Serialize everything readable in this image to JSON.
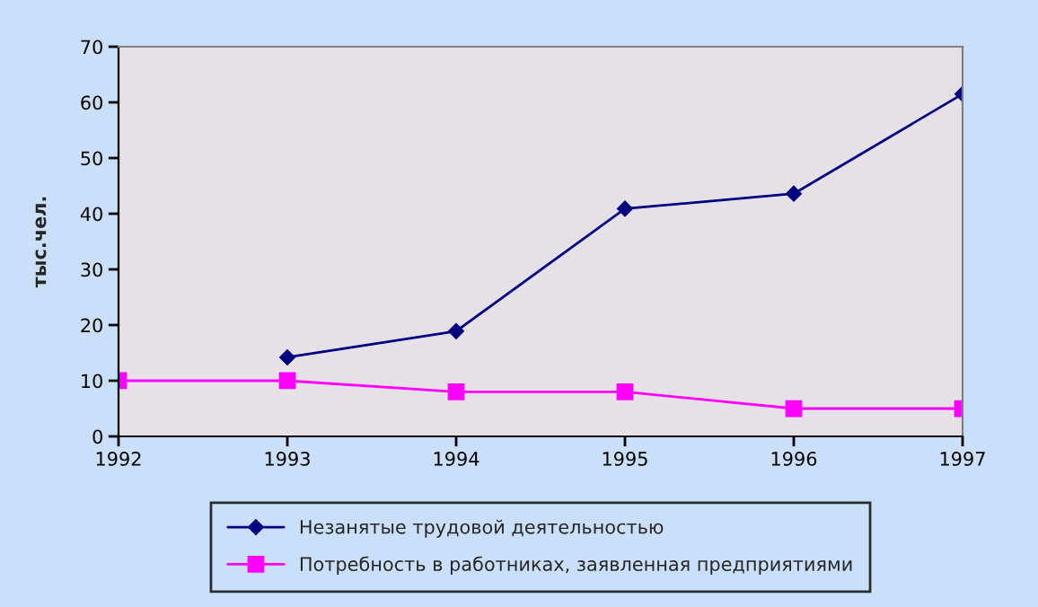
{
  "chart_data": {
    "type": "line",
    "ylabel": "тыс.чел.",
    "x": [
      1992,
      1993,
      1994,
      1995,
      1996,
      1997
    ],
    "series": [
      {
        "name": "Незанятые трудовой деятельностью",
        "color": "#000080",
        "marker": "diamond",
        "values": [
          null,
          14.2,
          18.9,
          40.9,
          43.6,
          61.5
        ]
      },
      {
        "name": "Потребность в работниках, заявленная предприятиями",
        "color": "#ff00ff",
        "marker": "square",
        "values": [
          10,
          10,
          8,
          8,
          5,
          5
        ]
      }
    ],
    "xlim": [
      1992,
      1997
    ],
    "xticks": [
      1992,
      1993,
      1994,
      1995,
      1996,
      1997
    ],
    "ylim": [
      0,
      70
    ],
    "yticks": [
      0,
      10,
      20,
      30,
      40,
      50,
      60,
      70
    ],
    "grid": false,
    "legend": "bottom"
  }
}
